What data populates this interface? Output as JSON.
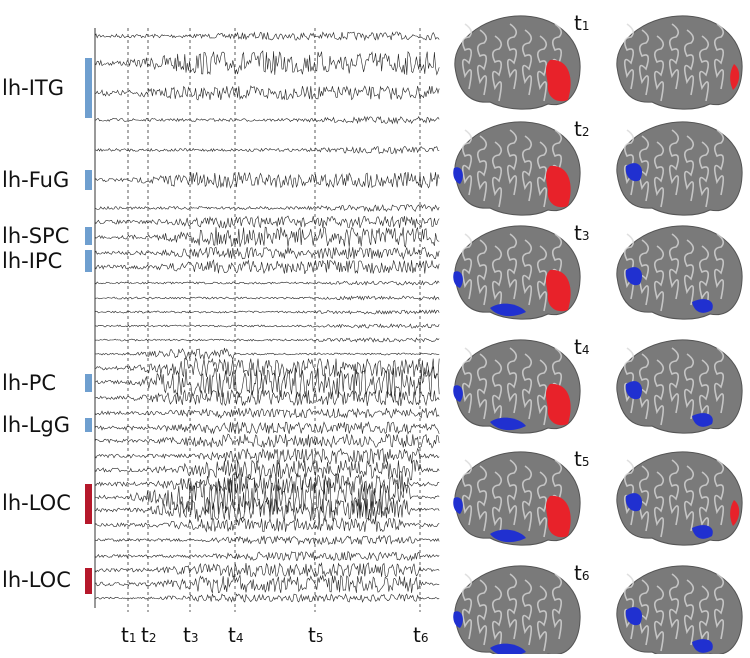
{
  "regions": [
    {
      "label": "lh-ITG",
      "color": "#6f9fcf"
    },
    {
      "label": "lh-FuG",
      "color": "#6f9fcf"
    },
    {
      "label": "lh-SPC",
      "color": "#6f9fcf"
    },
    {
      "label": "lh-IPC",
      "color": "#6f9fcf"
    },
    {
      "label": "lh-PC",
      "color": "#6f9fcf"
    },
    {
      "label": "lh-LgG",
      "color": "#6f9fcf"
    },
    {
      "label": "lh-LOC",
      "color": "#b5182b"
    },
    {
      "label": "lh-LOC",
      "color": "#b5182b"
    }
  ],
  "time_markers": [
    {
      "base": "t",
      "sub": "1"
    },
    {
      "base": "t",
      "sub": "2"
    },
    {
      "base": "t",
      "sub": "3"
    },
    {
      "base": "t",
      "sub": "4"
    },
    {
      "base": "t",
      "sub": "5"
    },
    {
      "base": "t",
      "sub": "6"
    }
  ],
  "brain_panels": [
    {
      "base": "t",
      "sub": "1"
    },
    {
      "base": "t",
      "sub": "2"
    },
    {
      "base": "t",
      "sub": "3"
    },
    {
      "base": "t",
      "sub": "4"
    },
    {
      "base": "t",
      "sub": "5"
    },
    {
      "base": "t",
      "sub": "6"
    }
  ]
}
